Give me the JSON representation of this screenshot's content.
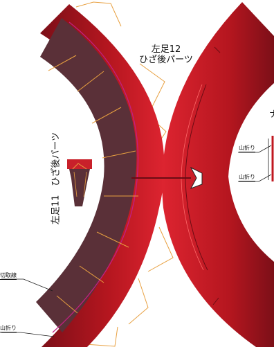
{
  "labels": {
    "part_right_line1": "左足12",
    "part_right_line2": "ひざ後パーツ",
    "part_left": "左足11　ひざ後パーツ",
    "cut_line": "切取線",
    "mountain_fold_bottom": "山折り",
    "mountain_fold_right_1": "山折り",
    "mountain_fold_right_2": "山折り",
    "edge_fragment": "ナ"
  },
  "colors": {
    "red_bright": "#d8202c",
    "red_dark": "#7c0f18",
    "maroon_fill": "#5a3038",
    "tab_orange": "#e8a040",
    "pink_line": "#c02080",
    "fold_line": "#1a1a1a"
  }
}
